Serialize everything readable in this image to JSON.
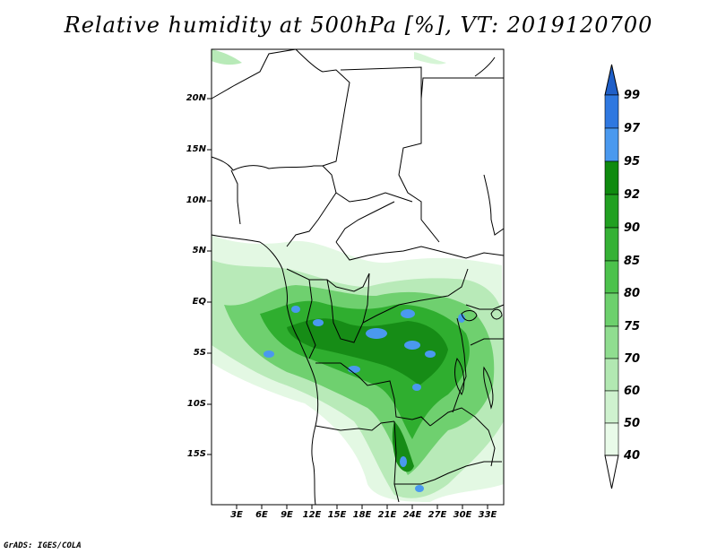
{
  "title": "Relative humidity at 500hPa [%], VT: 2019120700",
  "credit": "GrADS: IGES/COLA",
  "map": {
    "lat_labels": [
      "20N",
      "15N",
      "10N",
      "5N",
      "EQ",
      "5S",
      "10S",
      "15S"
    ],
    "lat_values": [
      20,
      15,
      10,
      5,
      0,
      -5,
      -10,
      -15
    ],
    "lon_labels": [
      "3E",
      "6E",
      "9E",
      "12E",
      "15E",
      "18E",
      "21E",
      "24E",
      "27E",
      "30E",
      "33E"
    ],
    "lon_values": [
      3,
      6,
      9,
      12,
      15,
      18,
      21,
      24,
      27,
      30,
      33
    ],
    "lon_range": [
      0,
      35
    ],
    "lat_range": [
      -20,
      25
    ]
  },
  "colorbar": {
    "levels": [
      "99",
      "97",
      "95",
      "92",
      "90",
      "85",
      "80",
      "75",
      "70",
      "60",
      "50",
      "40"
    ],
    "colors": [
      "#1f5fc8",
      "#2f78e0",
      "#4a99ef",
      "#0f8a0f",
      "#21a021",
      "#35b135",
      "#4cc24c",
      "#6dd06d",
      "#90dd90",
      "#b2e8b2",
      "#cff2cf",
      "#e9fbe9",
      "#ffffff"
    ]
  }
}
